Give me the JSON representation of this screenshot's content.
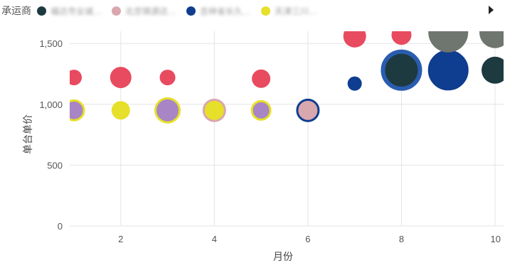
{
  "legend": {
    "title": "承运商",
    "items": [
      {
        "label": "福达市业诚…",
        "color": "#1d3a40"
      },
      {
        "label": "北京锦源达…",
        "color": "#d9a7ae"
      },
      {
        "label": "吉林省长久…",
        "color": "#0f3d8f"
      },
      {
        "label": "天津三川…",
        "color": "#e6e02a"
      }
    ]
  },
  "colors": {
    "red": "#e84a5f",
    "navy": "#0f3d8f",
    "navy_ring": "#2a5db0",
    "dark": "#1d3a40",
    "grey": "#6f756f",
    "pink": "#d9a7ae",
    "purple": "#a885c4",
    "yellow": "#e6e02a"
  },
  "chart_data": {
    "type": "scatter",
    "xlabel": "月份",
    "ylabel": "单台单价",
    "xlim": [
      1,
      10
    ],
    "ylim": [
      0,
      1600
    ],
    "x_ticks": [
      2,
      4,
      6,
      8,
      10
    ],
    "y_ticks": [
      0,
      500,
      1000,
      1500
    ],
    "y_tick_labels": [
      "0",
      "500",
      "1,000",
      "1,500"
    ],
    "points": [
      {
        "x": 1,
        "y": 1220,
        "size": 11,
        "color": "red"
      },
      {
        "x": 2,
        "y": 1220,
        "size": 15,
        "color": "red"
      },
      {
        "x": 3,
        "y": 1220,
        "size": 11,
        "color": "red"
      },
      {
        "x": 5,
        "y": 1210,
        "size": 13,
        "color": "red"
      },
      {
        "x": 7,
        "y": 1560,
        "size": 16,
        "color": "red"
      },
      {
        "x": 8,
        "y": 1570,
        "size": 14,
        "color": "red"
      },
      {
        "x": 1,
        "y": 950,
        "size": 14,
        "color": "purple",
        "stroke": "yellow"
      },
      {
        "x": 2,
        "y": 950,
        "size": 13,
        "color": "yellow"
      },
      {
        "x": 3,
        "y": 950,
        "size": 17,
        "color": "purple",
        "stroke": "yellow"
      },
      {
        "x": 4,
        "y": 950,
        "size": 15,
        "color": "yellow",
        "stroke": "pink"
      },
      {
        "x": 5,
        "y": 950,
        "size": 13,
        "color": "purple",
        "stroke": "yellow"
      },
      {
        "x": 6,
        "y": 950,
        "size": 15,
        "color": "pink",
        "stroke": "navy"
      },
      {
        "x": 7,
        "y": 1170,
        "size": 10,
        "color": "navy"
      },
      {
        "x": 8,
        "y": 1280,
        "size": 26,
        "color": "dark",
        "stroke": "navy_ring"
      },
      {
        "x": 9,
        "y": 1280,
        "size": 27,
        "color": "navy",
        "stroke": "navy"
      },
      {
        "x": 10,
        "y": 1280,
        "size": 19,
        "color": "dark"
      },
      {
        "x": 9,
        "y": 1590,
        "size": 28,
        "color": "grey"
      },
      {
        "x": 10,
        "y": 1590,
        "size": 22,
        "color": "grey"
      }
    ]
  }
}
